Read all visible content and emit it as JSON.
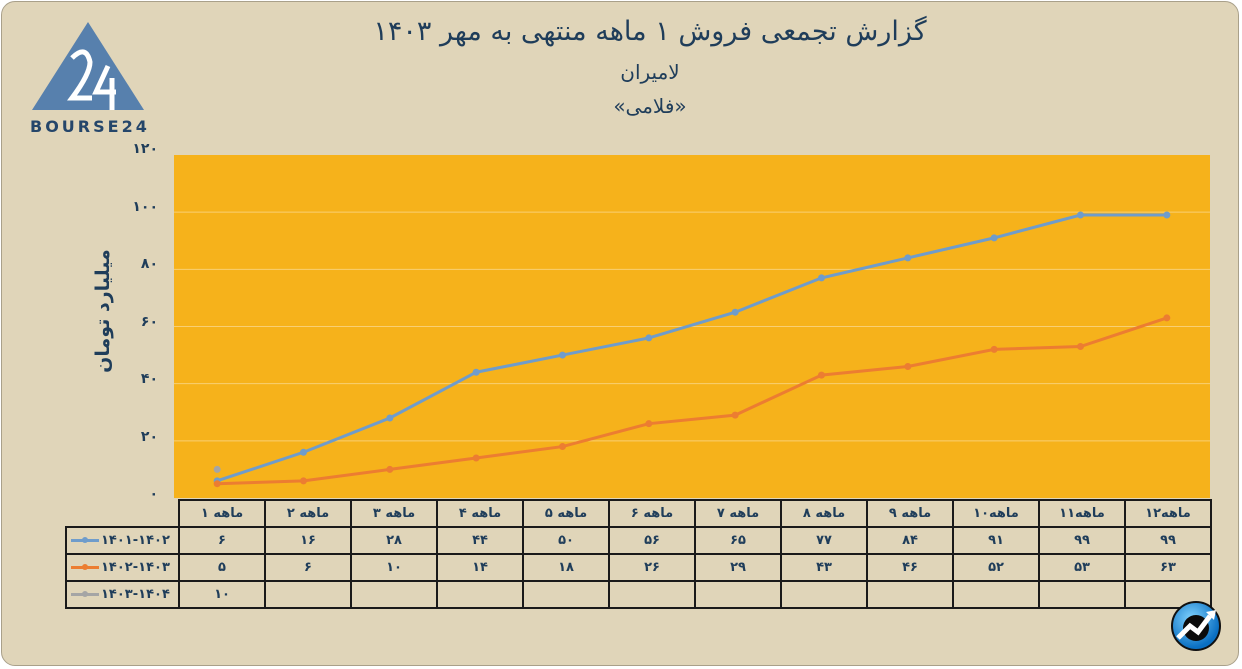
{
  "header": {
    "title": "گزارش تجمعی فروش ۱ ماهه منتهی به مهر ۱۴۰۳",
    "company": "لامیران",
    "ticker": "«فلامی»"
  },
  "logo": {
    "text": "BOURSE24",
    "icon": "triangle-24-logo"
  },
  "chart_data": {
    "type": "line",
    "title": "گزارش تجمعی فروش ۱ ماهه منتهی به مهر ۱۴۰۳",
    "subtitle": "لامیران «فلامی»",
    "xlabel": "",
    "ylabel": "میلیارد تومان",
    "ylim": [
      0,
      120
    ],
    "yticks": [
      "۰",
      "۲۰",
      "۴۰",
      "۶۰",
      "۸۰",
      "۱۰۰",
      "۱۲۰"
    ],
    "grid": true,
    "legend_position": "data-table-left",
    "categories": [
      "۱ ماهه",
      "۲ ماهه",
      "۳ ماهه",
      "۴ ماهه",
      "۵ ماهه",
      "۶ ماهه",
      "۷ ماهه",
      "۸ ماهه",
      "۹ ماهه",
      "۱۰ماهه",
      "۱۱ماهه",
      "۱۲ماهه"
    ],
    "series": [
      {
        "name": "۱۴۰۱-۱۴۰۲",
        "color": "#6f9ccb",
        "values": [
          6,
          16,
          28,
          44,
          50,
          56,
          65,
          77,
          84,
          91,
          99,
          99
        ],
        "labels": [
          "۶",
          "۱۶",
          "۲۸",
          "۴۴",
          "۵۰",
          "۵۶",
          "۶۵",
          "۷۷",
          "۸۴",
          "۹۱",
          "۹۹",
          "۹۹"
        ]
      },
      {
        "name": "۱۴۰۲-۱۴۰۳",
        "color": "#ec7d31",
        "values": [
          5,
          6,
          10,
          14,
          18,
          26,
          29,
          43,
          46,
          52,
          53,
          63
        ],
        "labels": [
          "۵",
          "۶",
          "۱۰",
          "۱۴",
          "۱۸",
          "۲۶",
          "۲۹",
          "۴۳",
          "۴۶",
          "۵۲",
          "۵۳",
          "۶۳"
        ]
      },
      {
        "name": "۱۴۰۳-۱۴۰۴",
        "color": "#a5a5a5",
        "values": [
          10
        ],
        "labels": [
          "۱۰",
          "",
          "",
          "",
          "",
          "",
          "",
          "",
          "",
          "",
          "",
          ""
        ]
      }
    ]
  },
  "badge": {
    "icon": "trend-up-icon"
  }
}
